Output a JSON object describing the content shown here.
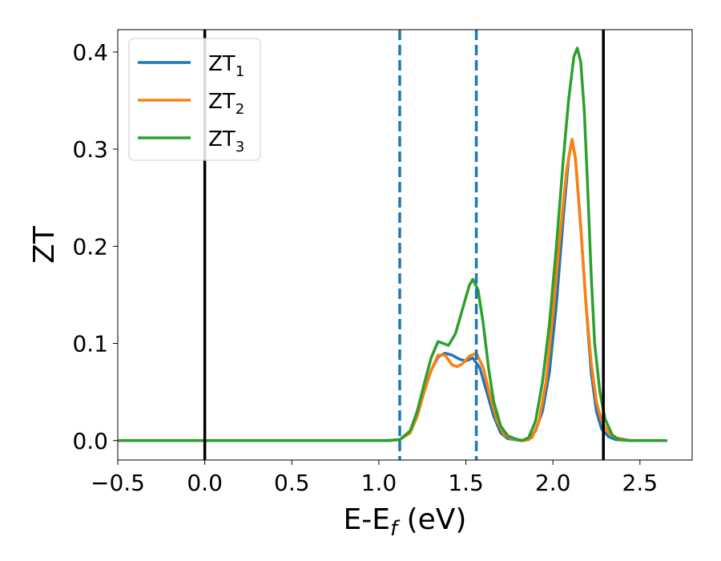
{
  "chart_data": {
    "type": "line",
    "xlabel": "E-E",
    "xlabel_sub": "f",
    "xlabel_unit": " (eV)",
    "ylabel": "ZT",
    "xlim": [
      -0.5,
      2.8
    ],
    "ylim": [
      -0.02,
      0.423
    ],
    "x_ticks": [
      -0.5,
      0.0,
      0.5,
      1.0,
      1.5,
      2.0,
      2.5
    ],
    "x_tick_labels": [
      "−0.5",
      "0.0",
      "0.5",
      "1.0",
      "1.5",
      "2.0",
      "2.5"
    ],
    "y_ticks": [
      0.0,
      0.1,
      0.2,
      0.3,
      0.4
    ],
    "y_tick_labels": [
      "0.0",
      "0.1",
      "0.2",
      "0.3",
      "0.4"
    ],
    "grid": false,
    "legend_position": "top-left",
    "vertical_lines": [
      {
        "x": 0.0,
        "style": "solid",
        "color": "#000000"
      },
      {
        "x": 2.29,
        "style": "solid",
        "color": "#000000"
      },
      {
        "x": 1.12,
        "style": "dashed",
        "color": "#1f77b4"
      },
      {
        "x": 1.56,
        "style": "dashed",
        "color": "#1f77b4"
      }
    ],
    "series": [
      {
        "name": "ZT",
        "name_sub": "1",
        "color": "#1f77b4",
        "points": [
          [
            -0.5,
            0
          ],
          [
            1.05,
            0
          ],
          [
            1.12,
            0.001
          ],
          [
            1.18,
            0.008
          ],
          [
            1.22,
            0.025
          ],
          [
            1.26,
            0.05
          ],
          [
            1.3,
            0.072
          ],
          [
            1.34,
            0.086
          ],
          [
            1.38,
            0.09
          ],
          [
            1.42,
            0.088
          ],
          [
            1.46,
            0.084
          ],
          [
            1.5,
            0.082
          ],
          [
            1.54,
            0.085
          ],
          [
            1.58,
            0.075
          ],
          [
            1.62,
            0.05
          ],
          [
            1.66,
            0.025
          ],
          [
            1.7,
            0.008
          ],
          [
            1.74,
            0.002
          ],
          [
            1.78,
            0.001
          ],
          [
            1.82,
            0.0
          ],
          [
            1.86,
            0.001
          ],
          [
            1.9,
            0.01
          ],
          [
            1.94,
            0.03
          ],
          [
            1.98,
            0.07
          ],
          [
            2.02,
            0.14
          ],
          [
            2.06,
            0.23
          ],
          [
            2.09,
            0.29
          ],
          [
            2.11,
            0.31
          ],
          [
            2.13,
            0.29
          ],
          [
            2.16,
            0.22
          ],
          [
            2.19,
            0.14
          ],
          [
            2.22,
            0.07
          ],
          [
            2.25,
            0.03
          ],
          [
            2.28,
            0.012
          ],
          [
            2.32,
            0.004
          ],
          [
            2.36,
            0.001
          ],
          [
            2.45,
            0
          ],
          [
            2.65,
            0
          ]
        ]
      },
      {
        "name": "ZT",
        "name_sub": "2",
        "color": "#ff7f0e",
        "points": [
          [
            -0.5,
            0
          ],
          [
            1.05,
            0
          ],
          [
            1.12,
            0.001
          ],
          [
            1.18,
            0.008
          ],
          [
            1.22,
            0.025
          ],
          [
            1.26,
            0.05
          ],
          [
            1.3,
            0.072
          ],
          [
            1.34,
            0.088
          ],
          [
            1.38,
            0.088
          ],
          [
            1.42,
            0.078
          ],
          [
            1.45,
            0.076
          ],
          [
            1.48,
            0.079
          ],
          [
            1.52,
            0.087
          ],
          [
            1.56,
            0.09
          ],
          [
            1.6,
            0.075
          ],
          [
            1.64,
            0.045
          ],
          [
            1.68,
            0.02
          ],
          [
            1.72,
            0.006
          ],
          [
            1.76,
            0.002
          ],
          [
            1.8,
            0.001
          ],
          [
            1.84,
            0.0
          ],
          [
            1.88,
            0.003
          ],
          [
            1.92,
            0.02
          ],
          [
            1.96,
            0.06
          ],
          [
            2.0,
            0.13
          ],
          [
            2.04,
            0.21
          ],
          [
            2.08,
            0.28
          ],
          [
            2.11,
            0.31
          ],
          [
            2.13,
            0.29
          ],
          [
            2.16,
            0.22
          ],
          [
            2.19,
            0.14
          ],
          [
            2.22,
            0.08
          ],
          [
            2.25,
            0.04
          ],
          [
            2.28,
            0.02
          ],
          [
            2.32,
            0.008
          ],
          [
            2.36,
            0.003
          ],
          [
            2.45,
            0
          ],
          [
            2.65,
            0
          ]
        ]
      },
      {
        "name": "ZT",
        "name_sub": "3",
        "color": "#2ca02c",
        "points": [
          [
            -0.5,
            0
          ],
          [
            1.05,
            0
          ],
          [
            1.12,
            0.001
          ],
          [
            1.18,
            0.01
          ],
          [
            1.22,
            0.03
          ],
          [
            1.26,
            0.058
          ],
          [
            1.3,
            0.085
          ],
          [
            1.34,
            0.102
          ],
          [
            1.37,
            0.1
          ],
          [
            1.4,
            0.098
          ],
          [
            1.44,
            0.11
          ],
          [
            1.48,
            0.135
          ],
          [
            1.52,
            0.16
          ],
          [
            1.54,
            0.166
          ],
          [
            1.57,
            0.155
          ],
          [
            1.6,
            0.12
          ],
          [
            1.63,
            0.075
          ],
          [
            1.66,
            0.04
          ],
          [
            1.7,
            0.015
          ],
          [
            1.74,
            0.005
          ],
          [
            1.78,
            0.002
          ],
          [
            1.82,
            0.0
          ],
          [
            1.86,
            0.003
          ],
          [
            1.9,
            0.02
          ],
          [
            1.94,
            0.06
          ],
          [
            1.98,
            0.12
          ],
          [
            2.02,
            0.2
          ],
          [
            2.06,
            0.29
          ],
          [
            2.09,
            0.35
          ],
          [
            2.12,
            0.395
          ],
          [
            2.14,
            0.404
          ],
          [
            2.16,
            0.39
          ],
          [
            2.18,
            0.34
          ],
          [
            2.2,
            0.26
          ],
          [
            2.22,
            0.17
          ],
          [
            2.24,
            0.1
          ],
          [
            2.27,
            0.05
          ],
          [
            2.3,
            0.022
          ],
          [
            2.34,
            0.006
          ],
          [
            2.38,
            0.001
          ],
          [
            2.45,
            0
          ],
          [
            2.65,
            0
          ]
        ]
      }
    ]
  }
}
